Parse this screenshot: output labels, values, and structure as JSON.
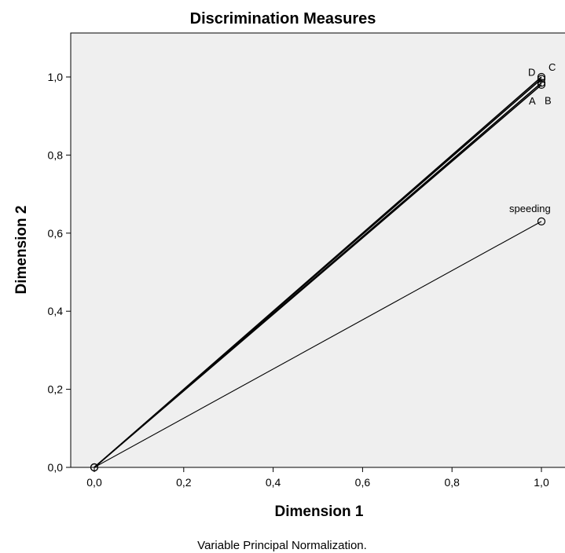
{
  "chart_data": {
    "type": "scatter",
    "title": "Discrimination Measures",
    "xlabel": "Dimension 1",
    "ylabel": "Dimension 2",
    "xlim": [
      0,
      1.0
    ],
    "ylim": [
      0,
      1.0
    ],
    "x_ticks": [
      "0,0",
      "0,2",
      "0,4",
      "0,6",
      "0,8",
      "1,0"
    ],
    "y_ticks": [
      "0,0",
      "0,2",
      "0,4",
      "0,6",
      "0,8",
      "1,0"
    ],
    "grid": false,
    "vectors_from_origin": true,
    "plot_background": "#efefef",
    "line_color": "#000000",
    "points": [
      {
        "label": "A",
        "x": 1.0,
        "y": 0.98
      },
      {
        "label": "B",
        "x": 1.0,
        "y": 0.985
      },
      {
        "label": "C",
        "x": 1.0,
        "y": 1.0
      },
      {
        "label": "D",
        "x": 1.0,
        "y": 0.995
      },
      {
        "label": "speeding",
        "x": 1.0,
        "y": 0.63
      }
    ],
    "footnote": "Variable Principal Normalization."
  }
}
